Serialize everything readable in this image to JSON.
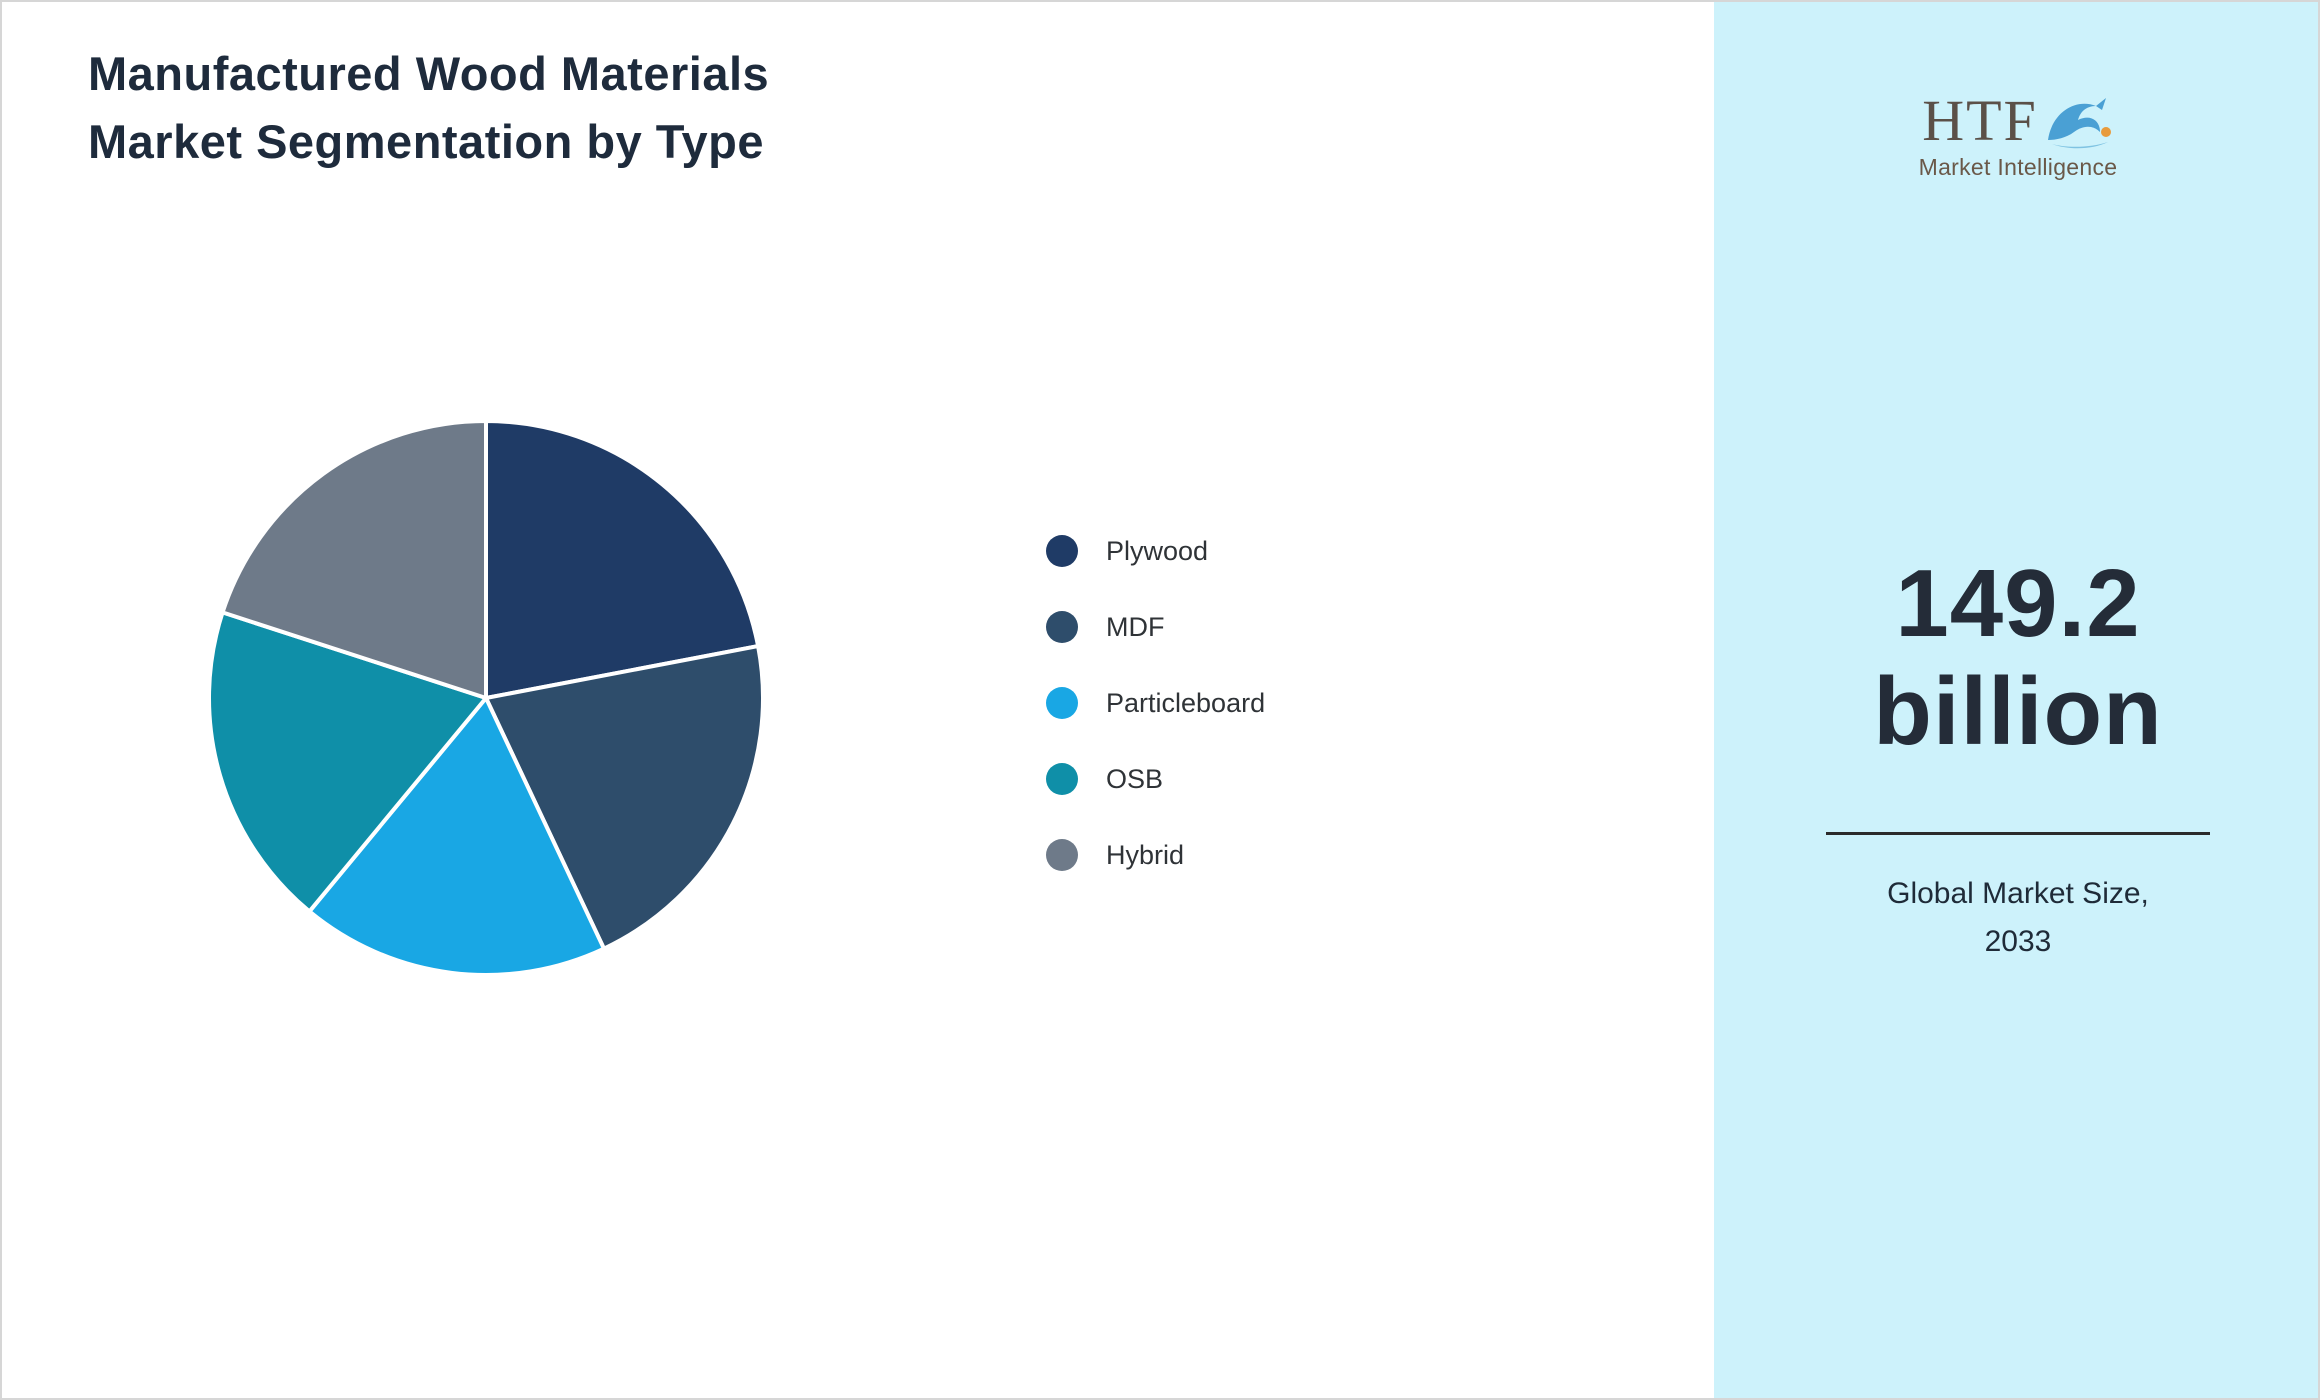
{
  "title": {
    "line1": "Manufactured Wood Materials",
    "line2": "Market Segmentation by Type"
  },
  "brand": {
    "name": "HTF",
    "subtitle": "Market Intelligence"
  },
  "panel": {
    "background": "#cdf2fb",
    "value": "149.2",
    "unit": "billion",
    "caption_line1": "Global Market Size,",
    "caption_line2": "2033"
  },
  "chart_data": {
    "type": "pie",
    "title": "Manufactured Wood Materials Market Segmentation by Type",
    "categories": [
      "Plywood",
      "MDF",
      "Particleboard",
      "OSB",
      "Hybrid"
    ],
    "values": [
      22,
      21,
      18,
      19,
      20
    ],
    "values_note": "approximate percent share estimated from slice angles; no data labels shown",
    "colors": [
      "#1f3b66",
      "#2e4d6b",
      "#19a7e4",
      "#0f8fa8",
      "#6e7a89"
    ],
    "start_angle_deg": 0,
    "direction": "clockwise",
    "slice_border_color": "#ffffff",
    "legend_position": "right"
  }
}
